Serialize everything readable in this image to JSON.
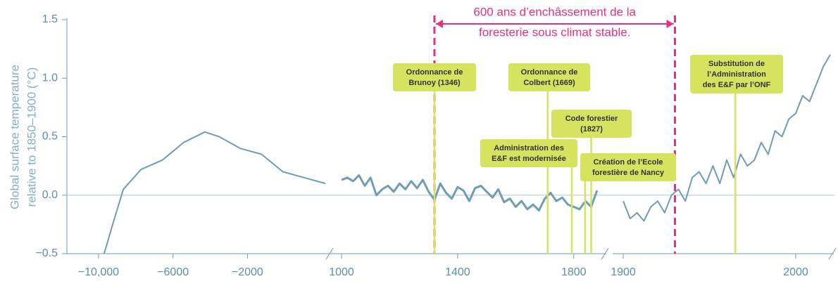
{
  "chart_data": {
    "type": "line",
    "color": "#6f9db3",
    "y_label": [
      "Global surface temperature",
      "relative to 1850–1900 (°C)"
    ],
    "ylim": [
      -0.5,
      1.5
    ],
    "yticks": [
      {
        "value": -0.5,
        "label": "−0.5"
      },
      {
        "value": 0,
        "label": "0.0"
      },
      0.5,
      {
        "value": 1,
        "label": "1.0"
      },
      1.5
    ],
    "panels": [
      {
        "xlim": [
          -11700,
          2300
        ],
        "xticks": [
          {
            "value": -10000,
            "label": "−10,000"
          },
          {
            "value": -6000,
            "label": "−6000"
          },
          {
            "value": -2000,
            "label": "−2000"
          }
        ],
        "x": [
          -9700,
          -9240,
          -8670,
          -7710,
          -6570,
          -5430,
          -4290,
          -3520,
          -2380,
          -1240,
          -100,
          1050,
          2190
        ],
        "values": [
          -0.5,
          -0.25,
          0.05,
          0.22,
          0.3,
          0.45,
          0.54,
          0.5,
          0.4,
          0.35,
          0.2,
          0.15,
          0.1
        ]
      },
      {
        "xlim": [
          1000,
          1900
        ],
        "xticks": [
          1000,
          1400,
          1800
        ],
        "x": [
          1000,
          1020,
          1040,
          1060,
          1080,
          1100,
          1120,
          1140,
          1160,
          1180,
          1200,
          1220,
          1240,
          1260,
          1280,
          1300,
          1320,
          1340,
          1360,
          1380,
          1400,
          1420,
          1440,
          1460,
          1480,
          1500,
          1520,
          1540,
          1560,
          1580,
          1600,
          1620,
          1640,
          1660,
          1680,
          1700,
          1720,
          1740,
          1760,
          1780,
          1800,
          1820,
          1840,
          1860,
          1880
        ],
        "values": [
          0.13,
          0.15,
          0.12,
          0.17,
          0.08,
          0.15,
          0.0,
          0.05,
          0.08,
          0.03,
          0.1,
          0.05,
          0.12,
          0.06,
          0.13,
          0.03,
          -0.04,
          0.1,
          0.02,
          -0.03,
          0.07,
          0.04,
          -0.05,
          0.06,
          0.08,
          0.03,
          -0.02,
          0.05,
          -0.06,
          -0.03,
          -0.1,
          -0.05,
          -0.12,
          -0.08,
          -0.13,
          -0.03,
          0.02,
          -0.05,
          -0.02,
          -0.08,
          -0.1,
          -0.12,
          -0.05,
          -0.1,
          0.04
        ]
      },
      {
        "xlim": [
          1900,
          2020
        ],
        "xticks": [
          1900,
          2000
        ],
        "x": [
          1900,
          1904,
          1908,
          1912,
          1916,
          1920,
          1924,
          1928,
          1932,
          1936,
          1940,
          1944,
          1948,
          1952,
          1956,
          1960,
          1964,
          1968,
          1972,
          1976,
          1980,
          1984,
          1988,
          1992,
          1996,
          2000,
          2004,
          2008,
          2012,
          2016,
          2020
        ],
        "values": [
          -0.05,
          -0.2,
          -0.15,
          -0.22,
          -0.1,
          -0.05,
          -0.15,
          0.0,
          0.05,
          -0.05,
          0.15,
          0.2,
          0.1,
          0.25,
          0.1,
          0.3,
          0.15,
          0.35,
          0.25,
          0.3,
          0.45,
          0.35,
          0.55,
          0.5,
          0.65,
          0.7,
          0.85,
          0.8,
          0.95,
          1.1,
          1.2
        ]
      }
    ],
    "period": {
      "label": [
        "600 ans d’enchâssement de la",
        "foresterie sous climat stable."
      ],
      "color": "#e8317e",
      "start": {
        "panel": 1,
        "x": 1320
      },
      "end": {
        "panel": 2,
        "x": 1930
      }
    },
    "annotations": [
      {
        "label": [
          "Ordonnance de",
          "Brunoy (1346)"
        ],
        "panel": 1,
        "x": 1320
      },
      {
        "label": [
          "Ordonnance de",
          "Colbert (1669)"
        ],
        "panel": 1,
        "x": 1710
      },
      {
        "label": [
          "Administration des",
          "E&F est modernisée"
        ],
        "panel": 1,
        "x": 1793
      },
      {
        "label": [
          "Code forestier",
          "(1827)"
        ],
        "panel": 1,
        "x": 1860
      },
      {
        "label": [
          "Création de l’Ecole",
          "forestière de Nancy"
        ],
        "panel": 1,
        "x": 1839
      },
      {
        "label": [
          "Substitution de",
          "l’Administration",
          "des E&F par l’ONF"
        ],
        "panel": 2,
        "x": 1965
      }
    ],
    "annotation_color": "#d6e35f"
  }
}
